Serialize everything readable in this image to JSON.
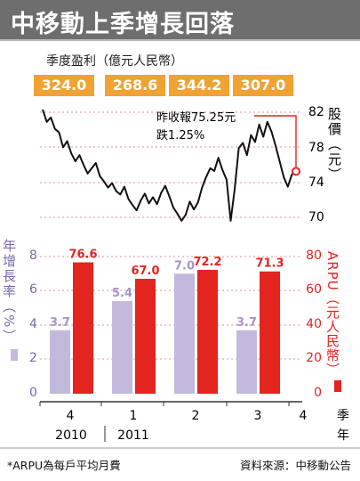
{
  "title": "中移動上季增長回落",
  "profit": {
    "label": "季度盈利（億元人民幣）",
    "values": [
      "324.0",
      "268.6",
      "344.2",
      "307.0"
    ]
  },
  "stock": {
    "annotation_line1": "昨收報75.25元",
    "annotation_line2": "跌1.25%",
    "axis_label": "股價（元）",
    "ticks": [
      70,
      74,
      78,
      82
    ],
    "series": [
      82.3,
      80.9,
      81.4,
      80.1,
      79.7,
      78.0,
      78.7,
      77.3,
      76.4,
      77.1,
      76.0,
      75.0,
      75.6,
      76.2,
      74.7,
      74.1,
      73.4,
      73.9,
      73.0,
      72.6,
      73.5,
      72.1,
      71.4,
      70.8,
      71.9,
      72.7,
      71.6,
      72.3,
      71.5,
      72.8,
      73.6,
      72.4,
      71.1,
      70.4,
      69.6,
      70.3,
      71.8,
      70.9,
      71.7,
      73.4,
      74.6,
      75.6,
      75.3,
      76.8,
      75.4,
      74.3,
      69.6,
      73.2,
      77.9,
      78.5,
      77.1,
      79.4,
      78.6,
      80.6,
      79.2,
      80.9,
      79.8,
      78.2,
      76.4,
      74.6,
      73.5,
      74.9,
      75.25
    ]
  },
  "arpu": {
    "left_axis_label": "年增長率（%）",
    "right_axis_label": "ARPU（元人民幣）",
    "left_ticks": [
      0,
      2,
      4,
      6,
      8
    ],
    "right_ticks": [
      0,
      20,
      40,
      60,
      80
    ]
  },
  "x_axis": {
    "quarter_labels": [
      "4",
      "1",
      "2",
      "3",
      "4"
    ],
    "year_labels": [
      "2010",
      "2011"
    ],
    "suffix_1": "季",
    "suffix_2": "年"
  },
  "colors": {
    "growth_bar": "#c3b9dc",
    "arpu_bar": "#e3241f",
    "profit_box": "#f0a332",
    "grid": "#e06a75",
    "marker": "#e3241f"
  },
  "footnote": "*ARPU為每戶平均月費",
  "source": "資料來源：中移動公告",
  "chart_data": {
    "type": "bar",
    "categories": [
      "4",
      "1",
      "2",
      "3"
    ],
    "series": [
      {
        "name": "年增長率（%）",
        "axis": "left",
        "values": [
          3.7,
          5.4,
          7.0,
          3.7
        ]
      },
      {
        "name": "ARPU（元人民幣）",
        "axis": "right",
        "values": [
          76.6,
          67.0,
          72.2,
          71.3
        ]
      }
    ],
    "left_ylim": [
      0,
      8
    ],
    "right_ylim": [
      0,
      80
    ],
    "line_series": {
      "name": "股價（元）",
      "ylim": [
        70,
        82
      ],
      "last_value": 75.25
    }
  }
}
